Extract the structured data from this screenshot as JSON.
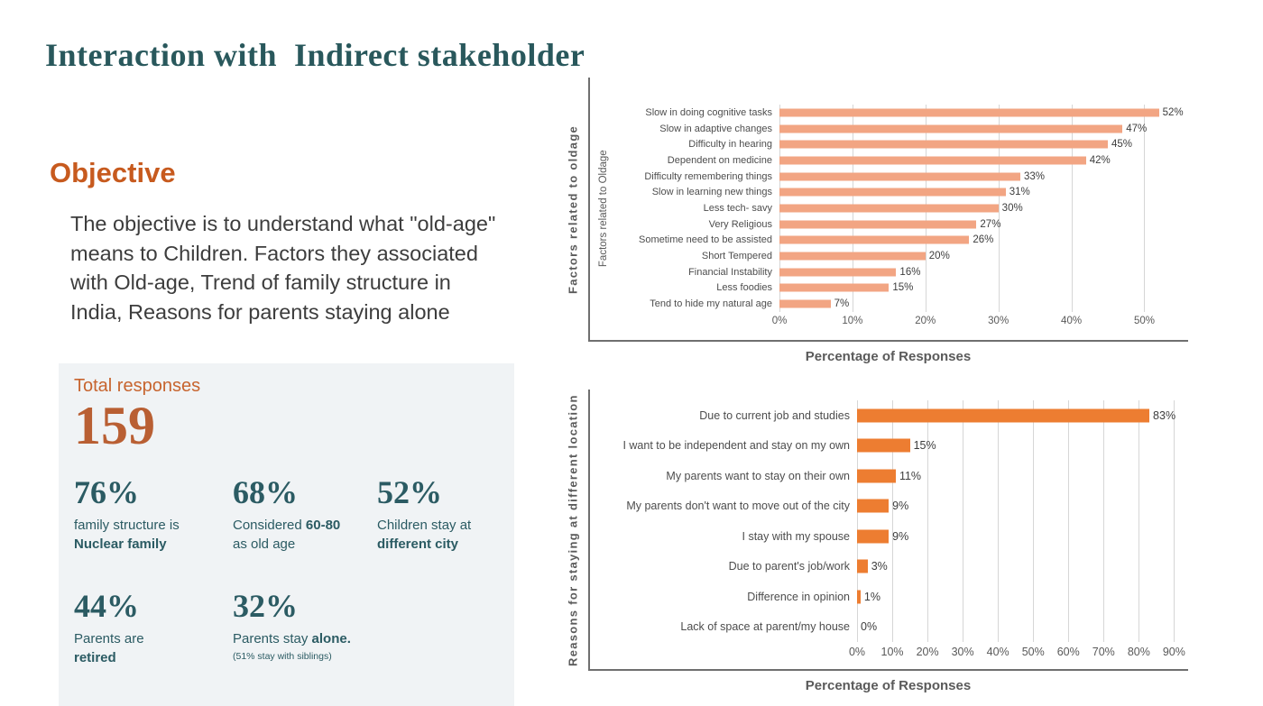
{
  "slide": {
    "title": "Interaction with  Indirect stakeholder"
  },
  "objective": {
    "heading": "Objective",
    "body_lines": [
      "The objective is to understand what \"old-age\"",
      "means to Children. Factors they associated",
      "with Old-age, Trend of family structure in",
      "India, Reasons for parents staying alone"
    ]
  },
  "stats_panel": {
    "total_label": "Total responses",
    "total_value": "159",
    "stats": [
      {
        "value": "76%",
        "lines": [
          [
            {
              "t": "family structure is",
              "b": false
            }
          ],
          [
            {
              "t": "Nuclear family",
              "b": true
            }
          ]
        ]
      },
      {
        "value": "68%",
        "lines": [
          [
            {
              "t": "Considered ",
              "b": false
            },
            {
              "t": "60-80",
              "b": true
            }
          ],
          [
            {
              "t": "as old age",
              "b": false
            }
          ]
        ]
      },
      {
        "value": "52%",
        "lines": [
          [
            {
              "t": "Children stay at",
              "b": false
            }
          ],
          [
            {
              "t": "different city",
              "b": true
            }
          ]
        ]
      },
      {
        "value": "44%",
        "lines": [
          [
            {
              "t": "Parents are",
              "b": false
            }
          ],
          [
            {
              "t": "retired",
              "b": true
            }
          ]
        ]
      },
      {
        "value": "32%",
        "lines": [
          [
            {
              "t": "Parents stay ",
              "b": false
            },
            {
              "t": "alone.",
              "b": true
            }
          ]
        ],
        "note": "(51% stay with siblings)"
      }
    ]
  },
  "colors": {
    "title_teal": "#29585C",
    "heading_orange": "#C75A1E",
    "stat_teal": "#2B5B63",
    "total_orange": "#B95F33",
    "panel_bg": "#F0F3F5",
    "chart1_bar": "#F2A583",
    "chart2_bar": "#ED7D31",
    "gridline": "#D6D6D6",
    "axis_frame": "#6F6F6F"
  },
  "chart_data": [
    {
      "type": "bar",
      "orientation": "horizontal",
      "title": "",
      "categories": [
        "Slow in doing cognitive tasks",
        "Slow in adaptive changes",
        "Difficulty in hearing",
        "Dependent on medicine",
        "Difficulty remembering things",
        "Slow in learning new things",
        "Less tech- savy",
        "Very Religious",
        "Sometime need to be assisted",
        "Short Tempered",
        "Financial Instability",
        "Less foodies",
        "Tend to hide my natural age"
      ],
      "values": [
        52,
        47,
        45,
        42,
        33,
        31,
        30,
        27,
        26,
        20,
        16,
        15,
        7
      ],
      "value_labels": [
        "52%",
        "47%",
        "45%",
        "42%",
        "33%",
        "31%",
        "30%",
        "27%",
        "26%",
        "20%",
        "16%",
        "15%",
        "7%"
      ],
      "xlabel": "Percentage of Responses",
      "ylabel": "Factors related to oldage",
      "ylabel_inner": "Factors related to Oldage",
      "tick_values": [
        0,
        10,
        20,
        30,
        40,
        50
      ],
      "tick_labels": [
        "0%",
        "10%",
        "20%",
        "30%",
        "40%",
        "50%"
      ],
      "xlim": [
        0,
        56
      ],
      "grid": true,
      "legend": false,
      "bar_color": "#F2A583"
    },
    {
      "type": "bar",
      "orientation": "horizontal",
      "title": "",
      "categories": [
        "Due to current job and studies",
        "I want to be independent and stay on my own",
        "My parents want to stay on their own",
        "My parents don't want to move out of the city",
        "I stay with my spouse",
        "Due to parent's job/work",
        "Difference in opinion",
        "Lack of space at parent/my house"
      ],
      "values": [
        83,
        15,
        11,
        9,
        9,
        3,
        1,
        0
      ],
      "value_labels": [
        "83%",
        "15%",
        "11%",
        "9%",
        "9%",
        "3%",
        "1%",
        "0%"
      ],
      "xlabel": "Percentage of Responses",
      "ylabel": "Reasons for staying at different location",
      "ylabel_inner": "",
      "tick_values": [
        0,
        10,
        20,
        30,
        40,
        50,
        60,
        70,
        80,
        90
      ],
      "tick_labels": [
        "0%",
        "10%",
        "20%",
        "30%",
        "40%",
        "50%",
        "60%",
        "70%",
        "80%",
        "90%"
      ],
      "xlim": [
        0,
        94
      ],
      "grid": true,
      "legend": false,
      "bar_color": "#ED7D31"
    }
  ]
}
